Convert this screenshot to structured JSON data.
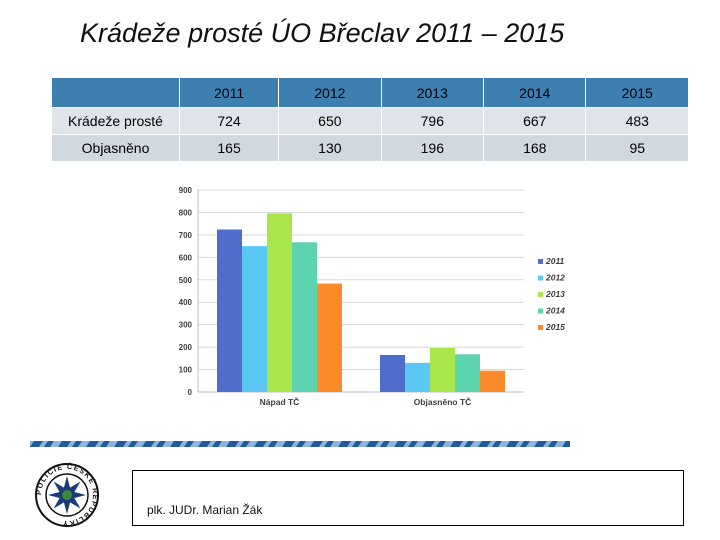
{
  "slide": {
    "title": "Krádeže prosté ÚO Břeclav 2011 – 2015",
    "author": "plk. JUDr. Marian Žák"
  },
  "table": {
    "corner": "",
    "years": [
      "2011",
      "2012",
      "2013",
      "2014",
      "2015"
    ],
    "rows": [
      {
        "label": "Krádeže prosté",
        "values": [
          "724",
          "650",
          "796",
          "667",
          "483"
        ]
      },
      {
        "label": "Objasněno",
        "values": [
          "165",
          "130",
          "196",
          "168",
          "95"
        ]
      }
    ]
  },
  "chart_data": {
    "type": "bar",
    "categories": [
      "Nápad TČ",
      "Objasněno TČ"
    ],
    "series": [
      {
        "name": "2011",
        "values": [
          724,
          165
        ],
        "color": "#4f6ecb"
      },
      {
        "name": "2012",
        "values": [
          650,
          130
        ],
        "color": "#5ac8f2"
      },
      {
        "name": "2013",
        "values": [
          796,
          196
        ],
        "color": "#a8e64a"
      },
      {
        "name": "2014",
        "values": [
          667,
          168
        ],
        "color": "#5cd4b0"
      },
      {
        "name": "2015",
        "values": [
          483,
          95
        ],
        "color": "#fb8a2b"
      }
    ],
    "yticks": [
      "0",
      "100",
      "200",
      "300",
      "400",
      "500",
      "600",
      "700",
      "800",
      "900"
    ],
    "ylim": [
      0,
      900
    ],
    "grid": true,
    "legend": "right"
  },
  "logo": {
    "ring_text": "POLICIE ČESKÉ REPUBLIKY",
    "colors": {
      "ring": "#111111",
      "star": "#1a3a7a",
      "center": "#3a8a3a"
    }
  },
  "decor": {
    "band_color": "#1f5aa0",
    "band_light_color": "#8fb3d9"
  }
}
